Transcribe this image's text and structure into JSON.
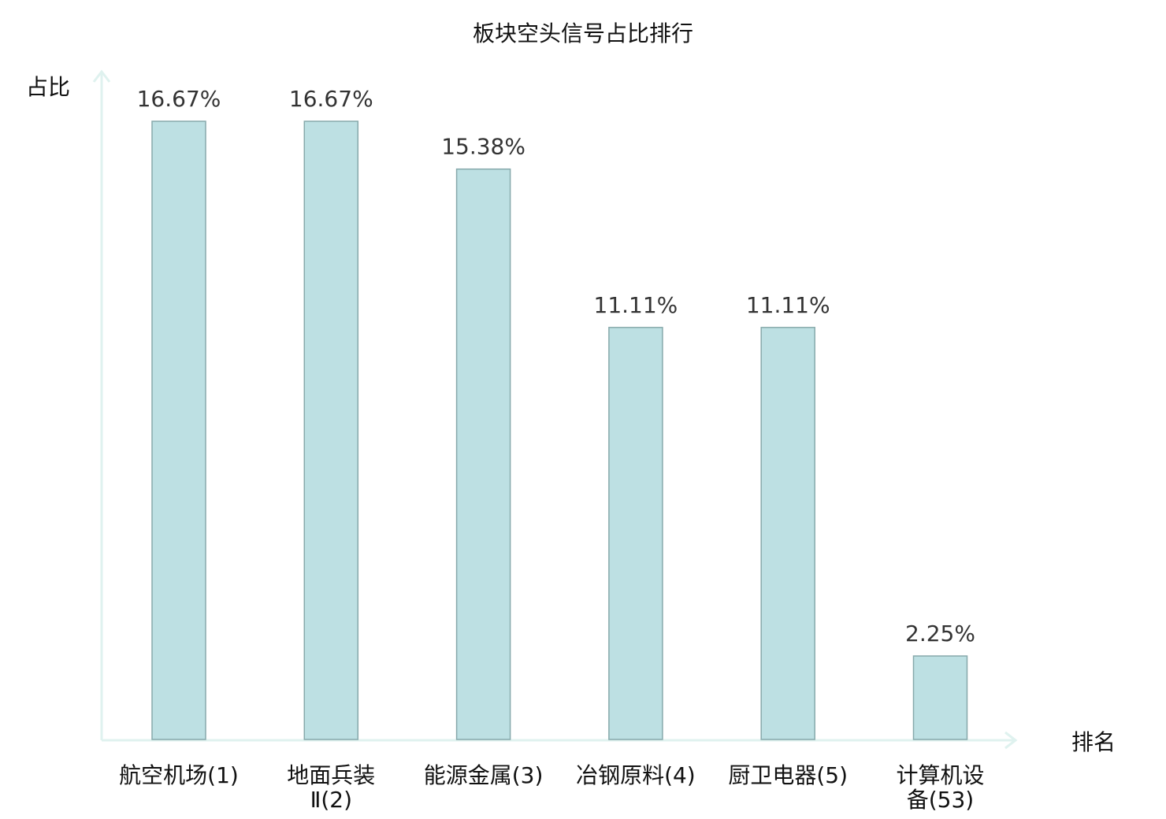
{
  "chart_data": {
    "type": "bar",
    "title": "板块空头信号占比排行",
    "xlabel": "排名",
    "ylabel": "占比",
    "categories": [
      [
        "航空机场(1)"
      ],
      [
        "地面兵装",
        "Ⅱ(2)"
      ],
      [
        "能源金属(3)"
      ],
      [
        "冶钢原料(4)"
      ],
      [
        "厨卫电器(5)"
      ],
      [
        "计算机设",
        "备(53)"
      ]
    ],
    "values": [
      16.67,
      16.67,
      15.38,
      11.11,
      11.11,
      2.25
    ],
    "value_labels": [
      "16.67%",
      "16.67%",
      "15.38%",
      "11.11%",
      "11.11%",
      "2.25%"
    ],
    "highlight_index": 5,
    "ylim": [
      0,
      16.67
    ],
    "grid": false,
    "colors": {
      "bar_fill": "#bde0e3",
      "bar_stroke": "#87a9ab",
      "axis": "#dff2ef",
      "highlight_label": "#e02020",
      "text": "#111111"
    }
  }
}
